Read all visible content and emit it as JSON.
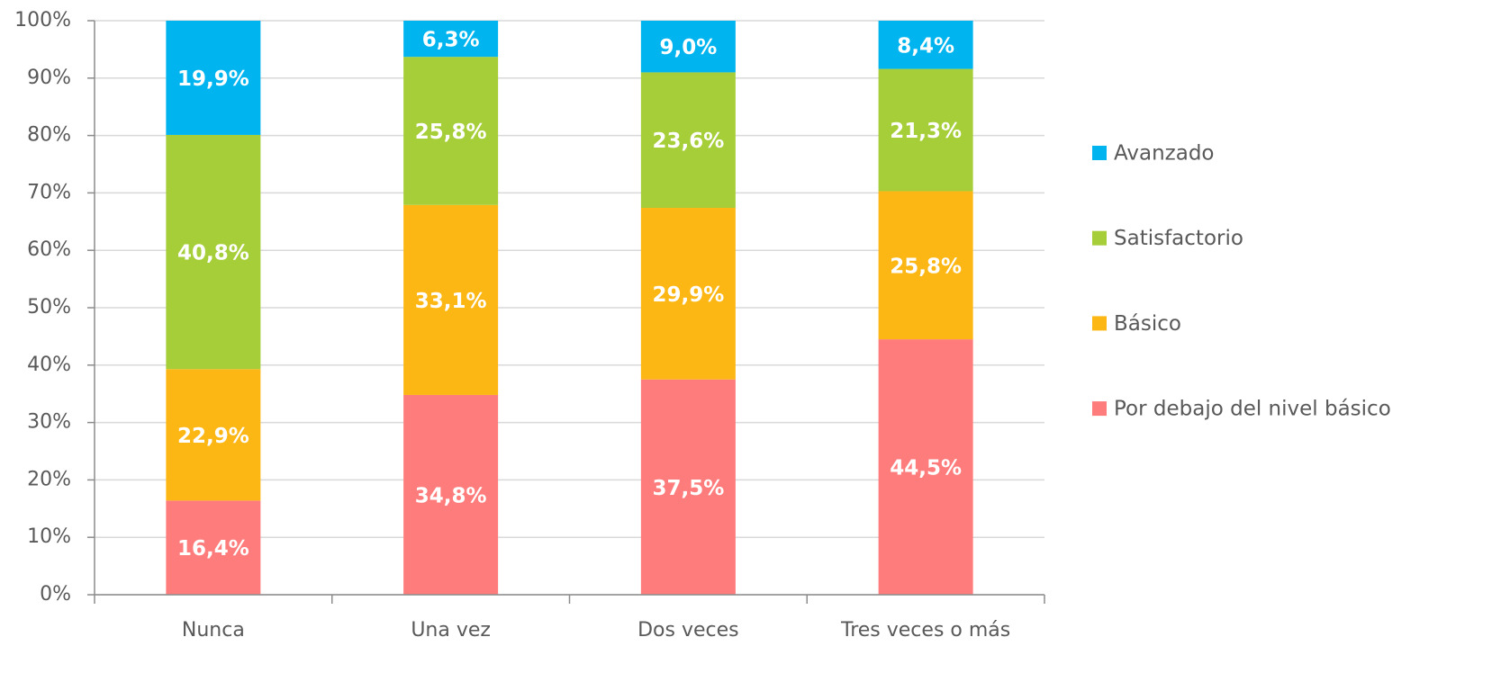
{
  "chart_data": {
    "type": "stacked_bar",
    "categories": [
      "Nunca",
      "Una vez",
      "Dos veces",
      "Tres veces o más"
    ],
    "series": [
      {
        "name": "Por debajo del nivel básico",
        "color": "#ff7c7c",
        "values": [
          16.4,
          34.8,
          37.5,
          44.5
        ],
        "value_labels": [
          "16,4%",
          "34,8%",
          "37,5%",
          "44,5%"
        ]
      },
      {
        "name": "Básico",
        "color": "#fdb714",
        "values": [
          22.9,
          33.1,
          29.9,
          25.8
        ],
        "value_labels": [
          "22,9%",
          "33,1%",
          "29,9%",
          "25,8%"
        ]
      },
      {
        "name": "Satisfactorio",
        "color": "#a6ce39",
        "values": [
          40.8,
          25.8,
          23.6,
          21.3
        ],
        "value_labels": [
          "40,8%",
          "25,8%",
          "23,6%",
          "21,3%"
        ]
      },
      {
        "name": "Avanzado",
        "color": "#00b5ef",
        "values": [
          19.9,
          6.3,
          9.0,
          8.4
        ],
        "value_labels": [
          "19,9%",
          "6,3%",
          "9,0%",
          "8,4%"
        ]
      }
    ],
    "ylim": [
      0,
      100
    ],
    "yticks": [
      {
        "value": 0,
        "label": "0%"
      },
      {
        "value": 10,
        "label": "10%"
      },
      {
        "value": 20,
        "label": "20%"
      },
      {
        "value": 30,
        "label": "30%"
      },
      {
        "value": 40,
        "label": "40%"
      },
      {
        "value": 50,
        "label": "50%"
      },
      {
        "value": 60,
        "label": "60%"
      },
      {
        "value": 70,
        "label": "70%"
      },
      {
        "value": 80,
        "label": "80%"
      },
      {
        "value": 90,
        "label": "90%"
      },
      {
        "value": 100,
        "label": "100%"
      }
    ],
    "grid": true,
    "legend": "right"
  }
}
